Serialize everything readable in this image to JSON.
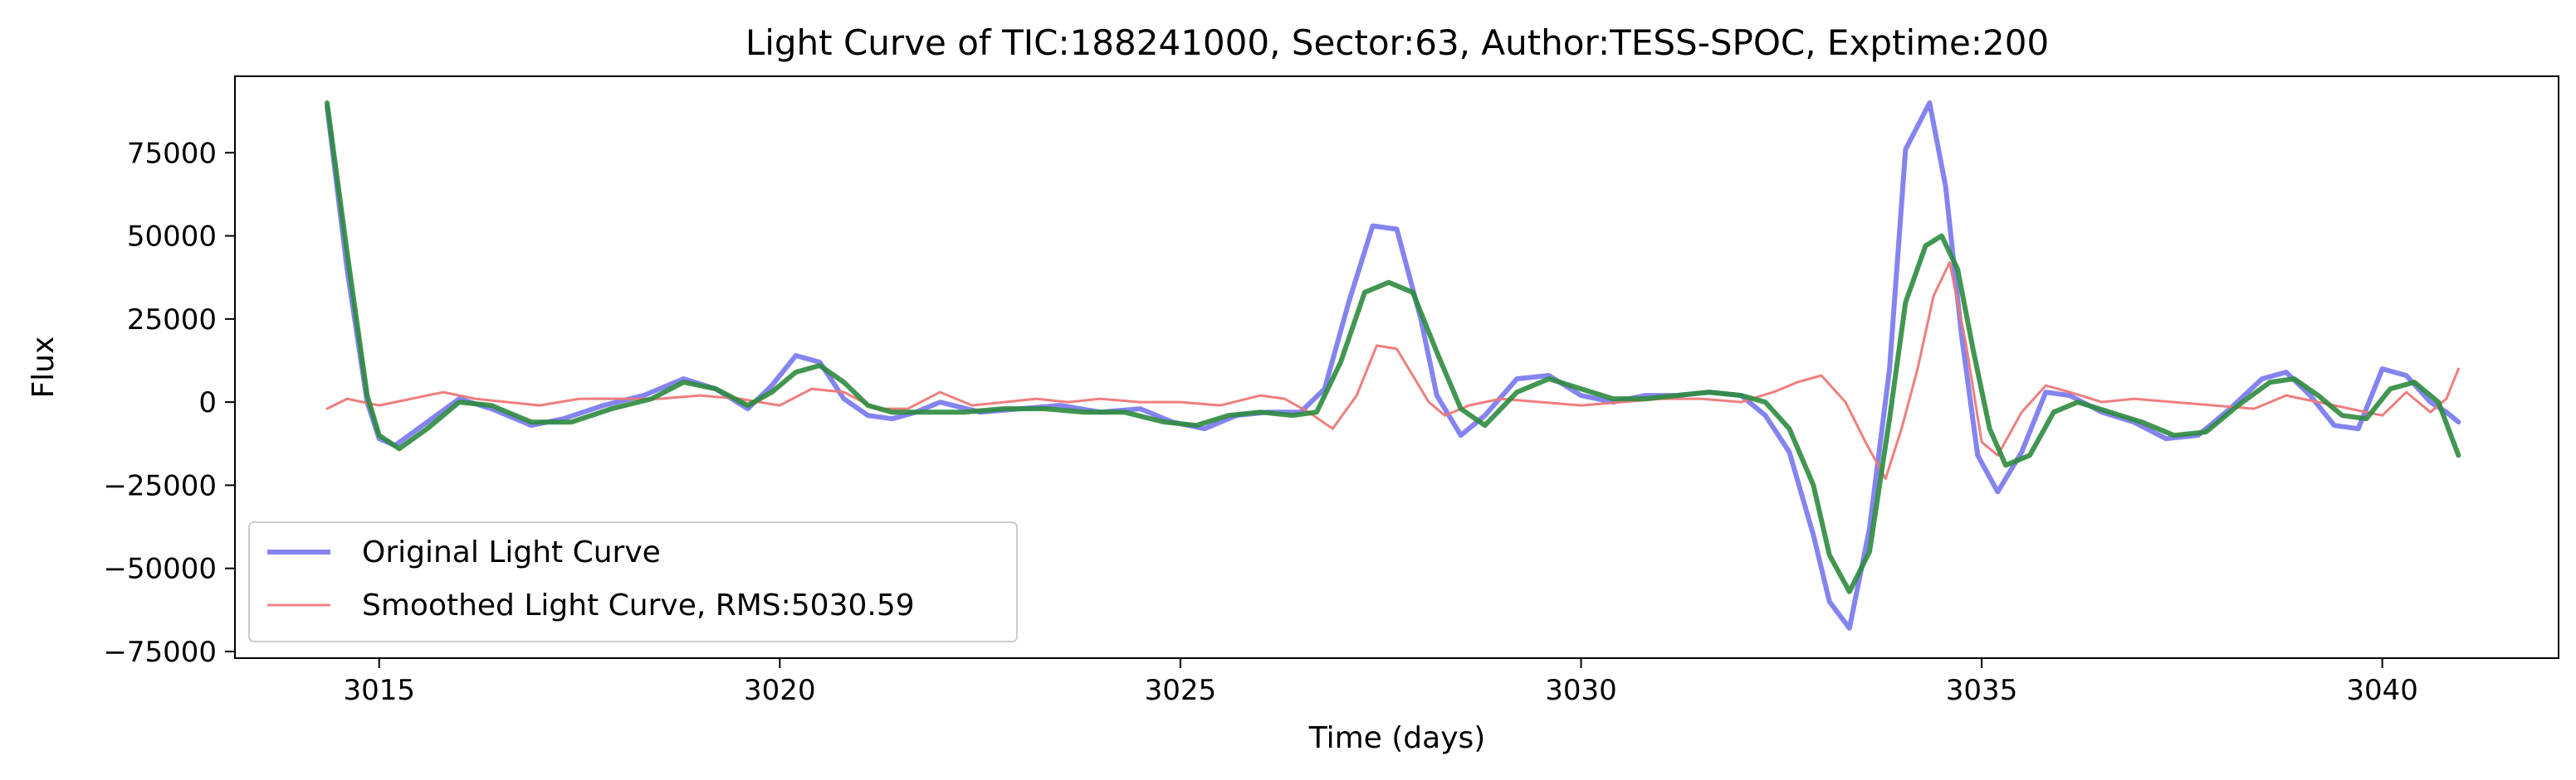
{
  "chart_data": {
    "type": "line",
    "title": "Light Curve of TIC:188241000, Sector:63, Author:TESS-SPOC, Exptime:200",
    "xlabel": "Time (days)",
    "ylabel": "Flux",
    "xlim": [
      3013.2,
      3042.2
    ],
    "ylim": [
      -77000,
      98000
    ],
    "xticks": [
      3015,
      3020,
      3025,
      3030,
      3035,
      3040
    ],
    "yticks": [
      -75000,
      -50000,
      -25000,
      0,
      25000,
      50000,
      75000
    ],
    "xtick_labels": [
      "3015",
      "3020",
      "3025",
      "3030",
      "3035",
      "3040"
    ],
    "ytick_labels": [
      "−75000",
      "−50000",
      "−25000",
      "0",
      "25000",
      "50000",
      "75000"
    ],
    "grid": false,
    "legend_position": "lower-left",
    "series": [
      {
        "name": "Original Light Curve",
        "color": "#7777ee",
        "x": [
          3014.35,
          3014.6,
          3014.85,
          3015.0,
          3015.2,
          3015.6,
          3016.0,
          3016.4,
          3016.9,
          3017.3,
          3017.8,
          3018.3,
          3018.8,
          3019.2,
          3019.6,
          3019.9,
          3020.2,
          3020.5,
          3020.8,
          3021.1,
          3021.4,
          3021.7,
          3022.0,
          3022.5,
          3023.0,
          3023.5,
          3024.0,
          3024.5,
          3024.9,
          3025.3,
          3025.7,
          3026.1,
          3026.5,
          3026.8,
          3027.1,
          3027.4,
          3027.7,
          3028.0,
          3028.2,
          3028.5,
          3028.8,
          3029.2,
          3029.6,
          3030.0,
          3030.4,
          3030.8,
          3031.2,
          3031.6,
          3032.0,
          3032.3,
          3032.6,
          3032.9,
          3033.1,
          3033.35,
          3033.6,
          3033.85,
          3034.05,
          3034.35,
          3034.55,
          3034.75,
          3034.95,
          3035.2,
          3035.5,
          3035.8,
          3036.1,
          3036.5,
          3036.9,
          3037.3,
          3037.7,
          3038.1,
          3038.5,
          3038.8,
          3039.1,
          3039.4,
          3039.7,
          3040.0,
          3040.3,
          3040.6,
          3040.8,
          3040.95
        ],
        "values": [
          89000,
          40000,
          0,
          -11000,
          -13000,
          -6000,
          1000,
          -2000,
          -7000,
          -5000,
          -1000,
          2000,
          7000,
          4000,
          -2000,
          5000,
          14000,
          12000,
          1000,
          -4000,
          -5000,
          -3000,
          0,
          -3000,
          -2000,
          -1000,
          -3000,
          -2000,
          -6000,
          -8000,
          -4000,
          -3000,
          -3000,
          4000,
          30000,
          53000,
          52000,
          25000,
          2000,
          -10000,
          -4000,
          7000,
          8000,
          2000,
          0,
          2000,
          2000,
          3000,
          2000,
          -4000,
          -15000,
          -40000,
          -60000,
          -68000,
          -38000,
          10000,
          76000,
          90000,
          65000,
          20000,
          -16000,
          -27000,
          -15000,
          3000,
          2000,
          -3000,
          -6000,
          -11000,
          -10000,
          -2000,
          7000,
          9000,
          2000,
          -7000,
          -8000,
          10000,
          8000,
          0,
          -3000,
          -6000
        ]
      },
      {
        "name": "Smoothed Light Curve, RMS:5030.59",
        "color": "#ee7777",
        "x": [
          3014.35,
          3014.6,
          3015.0,
          3015.4,
          3015.8,
          3016.2,
          3016.6,
          3017.0,
          3017.5,
          3018.0,
          3018.5,
          3019.0,
          3019.5,
          3020.0,
          3020.4,
          3020.8,
          3021.2,
          3021.6,
          3022.0,
          3022.4,
          3022.8,
          3023.2,
          3023.6,
          3024.0,
          3024.5,
          3025.0,
          3025.5,
          3026.0,
          3026.3,
          3026.6,
          3026.9,
          3027.2,
          3027.45,
          3027.7,
          3027.9,
          3028.1,
          3028.3,
          3028.6,
          3029.0,
          3029.5,
          3030.0,
          3030.5,
          3031.0,
          3031.5,
          3032.0,
          3032.4,
          3032.7,
          3033.0,
          3033.3,
          3033.55,
          3033.8,
          3034.0,
          3034.2,
          3034.4,
          3034.6,
          3034.8,
          3035.0,
          3035.2,
          3035.5,
          3035.8,
          3036.1,
          3036.5,
          3036.9,
          3037.4,
          3037.9,
          3038.4,
          3038.8,
          3039.2,
          3039.6,
          3040.0,
          3040.3,
          3040.6,
          3040.8,
          3040.95
        ],
        "values": [
          -2000,
          1000,
          -1000,
          1000,
          3000,
          1000,
          0,
          -1000,
          1000,
          1000,
          1000,
          2000,
          1000,
          -1000,
          4000,
          3000,
          -2000,
          -2000,
          3000,
          -1000,
          0,
          1000,
          0,
          1000,
          0,
          0,
          -1000,
          2000,
          1000,
          -3000,
          -8000,
          2000,
          17000,
          16000,
          8000,
          0,
          -4000,
          -1000,
          1000,
          0,
          -1000,
          0,
          1000,
          1000,
          0,
          3000,
          6000,
          8000,
          0,
          -12000,
          -23000,
          -8000,
          10000,
          32000,
          42000,
          18000,
          -12000,
          -16000,
          -3000,
          5000,
          3000,
          0,
          1000,
          0,
          -1000,
          -2000,
          2000,
          0,
          -2000,
          -4000,
          3000,
          -3000,
          1000,
          10000
        ]
      },
      {
        "color": "#2e8b3e",
        "x": [
          3014.35,
          3014.6,
          3014.85,
          3015.0,
          3015.25,
          3015.6,
          3016.0,
          3016.4,
          3016.9,
          3017.4,
          3017.9,
          3018.4,
          3018.8,
          3019.2,
          3019.6,
          3019.9,
          3020.2,
          3020.5,
          3020.8,
          3021.1,
          3021.4,
          3021.8,
          3022.3,
          3022.8,
          3023.3,
          3023.8,
          3024.3,
          3024.8,
          3025.2,
          3025.6,
          3026.0,
          3026.4,
          3026.7,
          3027.0,
          3027.3,
          3027.6,
          3027.9,
          3028.2,
          3028.5,
          3028.8,
          3029.2,
          3029.6,
          3030.0,
          3030.4,
          3030.8,
          3031.2,
          3031.6,
          3032.0,
          3032.3,
          3032.6,
          3032.9,
          3033.1,
          3033.35,
          3033.6,
          3033.85,
          3034.05,
          3034.3,
          3034.5,
          3034.7,
          3034.9,
          3035.1,
          3035.3,
          3035.6,
          3035.9,
          3036.2,
          3036.6,
          3037.0,
          3037.4,
          3037.8,
          3038.2,
          3038.6,
          3038.9,
          3039.2,
          3039.5,
          3039.8,
          3040.1,
          3040.4,
          3040.7,
          3040.95
        ],
        "values": [
          90000,
          45000,
          2000,
          -10000,
          -14000,
          -8000,
          0,
          -1000,
          -6000,
          -6000,
          -2000,
          1000,
          6000,
          4000,
          -1000,
          3000,
          9000,
          11000,
          6000,
          -1000,
          -3000,
          -3000,
          -3000,
          -2000,
          -2000,
          -3000,
          -3000,
          -6000,
          -7000,
          -4000,
          -3000,
          -4000,
          -3000,
          12000,
          33000,
          36000,
          33000,
          15000,
          -2000,
          -7000,
          3000,
          7000,
          4000,
          1000,
          1000,
          2000,
          3000,
          2000,
          0,
          -8000,
          -25000,
          -46000,
          -57000,
          -45000,
          -5000,
          30000,
          47000,
          50000,
          40000,
          15000,
          -8000,
          -19000,
          -16000,
          -3000,
          0,
          -3000,
          -6000,
          -10000,
          -9000,
          -1000,
          6000,
          7000,
          2000,
          -4000,
          -5000,
          4000,
          6000,
          0,
          -16000
        ]
      }
    ]
  }
}
